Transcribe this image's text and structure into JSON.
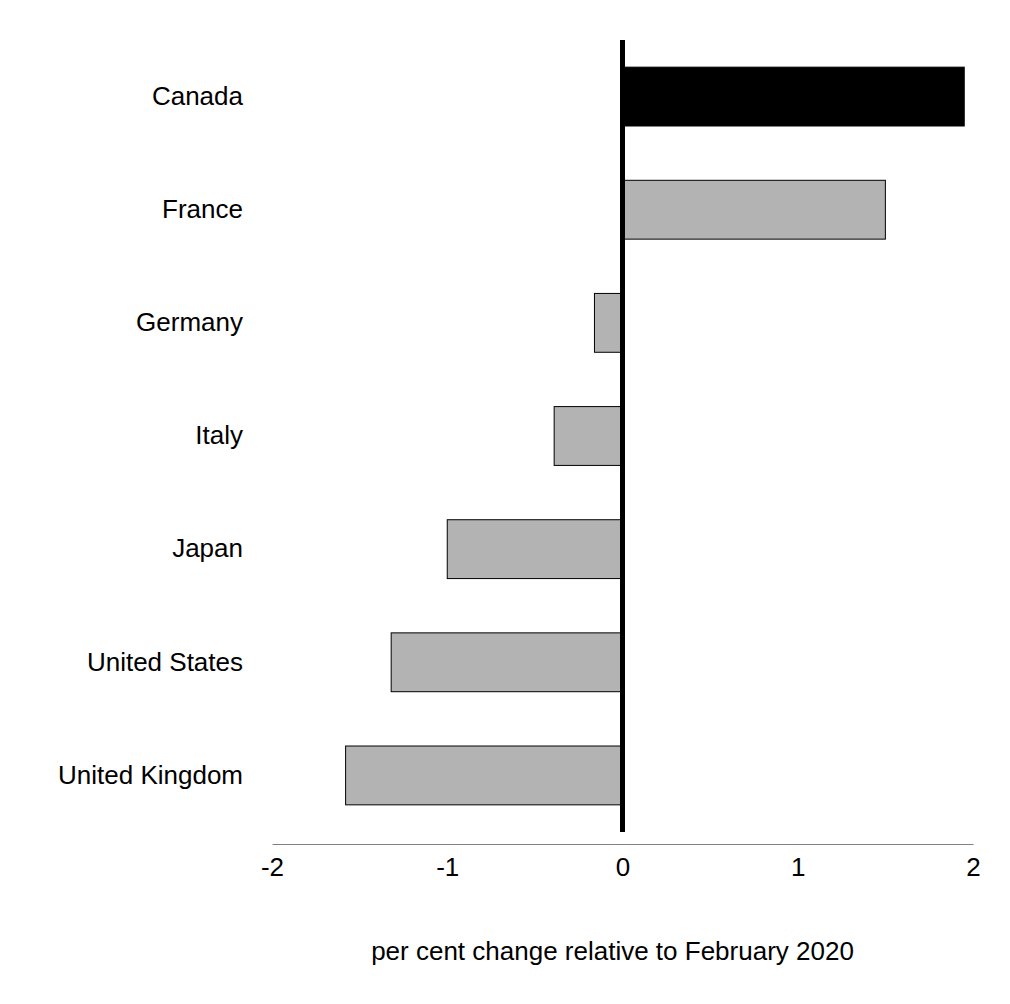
{
  "chart_data": {
    "type": "bar",
    "orientation": "horizontal",
    "categories": [
      "Canada",
      "France",
      "Germany",
      "Italy",
      "Japan",
      "United States",
      "United Kingdom"
    ],
    "values": [
      1.95,
      1.5,
      -0.16,
      -0.39,
      -1.0,
      -1.32,
      -1.58
    ],
    "colors": [
      "#000000",
      "#b3b3b3",
      "#b3b3b3",
      "#b3b3b3",
      "#b3b3b3",
      "#b3b3b3",
      "#b3b3b3"
    ],
    "x_label": "per cent change relative to February 2020",
    "xlim": [
      -2,
      2
    ],
    "xticks": [
      -2,
      -1,
      0,
      1,
      2
    ],
    "grid": false
  }
}
